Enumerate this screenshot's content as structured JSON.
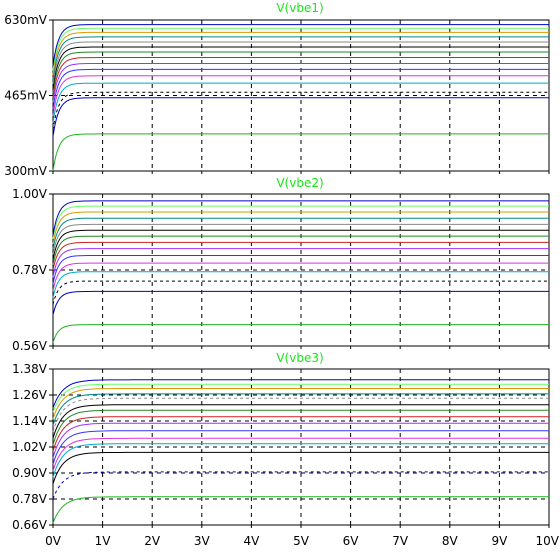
{
  "colors": {
    "background": "#ffffff",
    "frame": "#000000",
    "grid": "#000000",
    "title": "#19e619",
    "trace_palette": [
      "#1fb41f",
      "#0000c8",
      "#000000",
      "#00aacc",
      "#dd33dd",
      "#3333ff",
      "#9933ff",
      "#cc2222",
      "#228822",
      "#000000",
      "#888888",
      "#008888",
      "#dd9900",
      "#66ff66",
      "#0000cc"
    ]
  },
  "chart_data": [
    {
      "type": "line",
      "title": "V(vbe1)",
      "x_ticks": [
        "0V",
        "1V",
        "2V",
        "3V",
        "4V",
        "5V",
        "6V",
        "7V",
        "8V",
        "9V",
        "10V"
      ],
      "y_ticks": [
        "630mV",
        "465mV",
        "300mV"
      ],
      "xlim": [
        0,
        10
      ],
      "ylim": [
        0.3,
        0.63
      ],
      "grid": "dashed",
      "series": [
        {
          "final": 0.381,
          "start": 0.3,
          "settle": 0.45,
          "dashed": false
        },
        {
          "final": 0.46,
          "start": 0.375,
          "settle": 0.45,
          "dashed": false
        },
        {
          "final": 0.472,
          "start": 0.39,
          "settle": 0.45,
          "dashed": true
        },
        {
          "final": 0.492,
          "start": 0.405,
          "settle": 0.45,
          "dashed": false
        },
        {
          "final": 0.508,
          "start": 0.42,
          "settle": 0.45,
          "dashed": false
        },
        {
          "final": 0.522,
          "start": 0.435,
          "settle": 0.45,
          "dashed": false
        },
        {
          "final": 0.535,
          "start": 0.45,
          "settle": 0.45,
          "dashed": false
        },
        {
          "final": 0.548,
          "start": 0.46,
          "settle": 0.45,
          "dashed": false
        },
        {
          "final": 0.56,
          "start": 0.47,
          "settle": 0.45,
          "dashed": false
        },
        {
          "final": 0.571,
          "start": 0.48,
          "settle": 0.45,
          "dashed": false
        },
        {
          "final": 0.582,
          "start": 0.49,
          "settle": 0.45,
          "dashed": false
        },
        {
          "final": 0.593,
          "start": 0.5,
          "settle": 0.45,
          "dashed": false
        },
        {
          "final": 0.603,
          "start": 0.51,
          "settle": 0.45,
          "dashed": false
        },
        {
          "final": 0.612,
          "start": 0.52,
          "settle": 0.45,
          "dashed": false
        },
        {
          "final": 0.62,
          "start": 0.53,
          "settle": 0.45,
          "dashed": false
        }
      ]
    },
    {
      "type": "line",
      "title": "V(vbe2)",
      "x_ticks": [
        "0V",
        "1V",
        "2V",
        "3V",
        "4V",
        "5V",
        "6V",
        "7V",
        "8V",
        "9V",
        "10V"
      ],
      "y_ticks": [
        "1.00V",
        "0.78V",
        "0.56V"
      ],
      "xlim": [
        0,
        10
      ],
      "ylim": [
        0.56,
        1.0
      ],
      "grid": "dashed",
      "series": [
        {
          "final": 0.622,
          "start": 0.57,
          "settle": 0.45,
          "dashed": false
        },
        {
          "final": 0.718,
          "start": 0.65,
          "settle": 0.45,
          "dashed": false
        },
        {
          "final": 0.748,
          "start": 0.68,
          "settle": 0.45,
          "dashed": true
        },
        {
          "final": 0.775,
          "start": 0.7,
          "settle": 0.45,
          "dashed": false
        },
        {
          "final": 0.8,
          "start": 0.72,
          "settle": 0.45,
          "dashed": false
        },
        {
          "final": 0.822,
          "start": 0.74,
          "settle": 0.45,
          "dashed": false
        },
        {
          "final": 0.842,
          "start": 0.76,
          "settle": 0.45,
          "dashed": false
        },
        {
          "final": 0.86,
          "start": 0.78,
          "settle": 0.45,
          "dashed": false
        },
        {
          "final": 0.878,
          "start": 0.795,
          "settle": 0.45,
          "dashed": false
        },
        {
          "final": 0.895,
          "start": 0.81,
          "settle": 0.45,
          "dashed": false
        },
        {
          "final": 0.912,
          "start": 0.825,
          "settle": 0.45,
          "dashed": false
        },
        {
          "final": 0.93,
          "start": 0.84,
          "settle": 0.45,
          "dashed": false
        },
        {
          "final": 0.948,
          "start": 0.855,
          "settle": 0.45,
          "dashed": false
        },
        {
          "final": 0.965,
          "start": 0.87,
          "settle": 0.45,
          "dashed": false
        },
        {
          "final": 0.98,
          "start": 0.88,
          "settle": 0.45,
          "dashed": false
        }
      ]
    },
    {
      "type": "line",
      "title": "V(vbe3)",
      "x_ticks": [
        "0V",
        "1V",
        "2V",
        "3V",
        "4V",
        "5V",
        "6V",
        "7V",
        "8V",
        "9V",
        "10V"
      ],
      "y_ticks": [
        "1.38V",
        "1.26V",
        "1.14V",
        "1.02V",
        "0.90V",
        "0.78V",
        "0.66V"
      ],
      "xlim": [
        0,
        10
      ],
      "ylim": [
        0.66,
        1.38
      ],
      "grid": "dashed",
      "series": [
        {
          "final": 0.79,
          "start": 0.67,
          "settle": 0.8,
          "dashed": false
        },
        {
          "final": 0.905,
          "start": 0.78,
          "settle": 0.8,
          "dashed": true
        },
        {
          "final": 0.995,
          "start": 0.85,
          "settle": 0.8,
          "dashed": false
        },
        {
          "final": 1.035,
          "start": 0.88,
          "settle": 0.8,
          "dashed": false
        },
        {
          "final": 1.06,
          "start": 0.91,
          "settle": 0.8,
          "dashed": false
        },
        {
          "final": 1.095,
          "start": 0.94,
          "settle": 0.8,
          "dashed": false
        },
        {
          "final": 1.13,
          "start": 0.97,
          "settle": 0.8,
          "dashed": false
        },
        {
          "final": 1.16,
          "start": 1.0,
          "settle": 0.8,
          "dashed": false
        },
        {
          "final": 1.19,
          "start": 1.03,
          "settle": 0.8,
          "dashed": false
        },
        {
          "final": 1.215,
          "start": 1.06,
          "settle": 0.8,
          "dashed": false
        },
        {
          "final": 1.245,
          "start": 1.09,
          "settle": 0.8,
          "dashed": true
        },
        {
          "final": 1.265,
          "start": 1.12,
          "settle": 0.8,
          "dashed": false
        },
        {
          "final": 1.29,
          "start": 1.15,
          "settle": 0.8,
          "dashed": false
        },
        {
          "final": 1.31,
          "start": 1.18,
          "settle": 0.8,
          "dashed": false
        },
        {
          "final": 1.33,
          "start": 1.2,
          "settle": 0.8,
          "dashed": false
        }
      ]
    }
  ]
}
